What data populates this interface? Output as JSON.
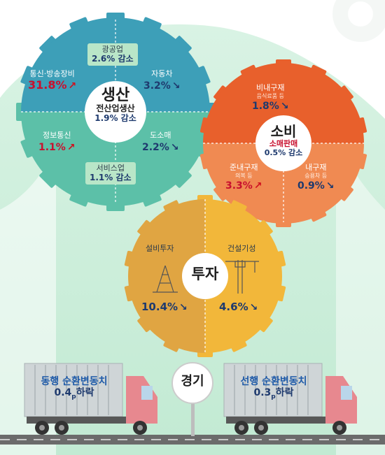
{
  "production": {
    "title": "생산",
    "subtitle": "전산업생산",
    "value": "1.9% 감소",
    "mining": {
      "label": "광공업",
      "value": "2.6% 감소"
    },
    "telecom_equipment": {
      "label": "통신·방송장비",
      "value": "31.8%",
      "direction": "up"
    },
    "automobile": {
      "label": "자동차",
      "value": "3.2%",
      "direction": "down"
    },
    "info_comm": {
      "label": "정보통신",
      "value": "1.1%",
      "direction": "up"
    },
    "wholesale_retail": {
      "label": "도소매",
      "value": "2.2%",
      "direction": "down"
    },
    "services": {
      "label": "서비스업",
      "value": "1.1% 감소"
    }
  },
  "consumption": {
    "title": "소비",
    "subtitle": "소매판매",
    "value": "0.5% 감소",
    "nondurables": {
      "label": "비내구재",
      "detail": "음식료품 등",
      "value": "1.8%",
      "direction": "down"
    },
    "semidurables": {
      "label": "준내구재",
      "detail": "의복 등",
      "value": "3.3%",
      "direction": "up"
    },
    "durables": {
      "label": "내구재",
      "detail": "승용차 등",
      "value": "0.9%",
      "direction": "down"
    }
  },
  "investment": {
    "title": "투자",
    "equipment": {
      "label": "설비투자",
      "value": "10.4%",
      "direction": "down"
    },
    "construction": {
      "label": "건설기성",
      "value": "4.6%",
      "direction": "down"
    }
  },
  "economy": {
    "label": "경기",
    "coincident": {
      "label": "동행 순환변동치",
      "value": "0.4",
      "unit": "p",
      "suffix": "하락"
    },
    "leading": {
      "label": "선행 순환변동치",
      "value": "0.3",
      "unit": "p",
      "suffix": "하락"
    }
  },
  "arrows": {
    "up": "↗",
    "down": "↘"
  },
  "colors": {
    "production_top": "#3d9fb8",
    "production_bottom": "#5cc0a8",
    "consumption_top": "#e8602c",
    "consumption_bottom": "#f08a52",
    "investment_left": "#e0a542",
    "investment_right": "#f2b73a",
    "background": "#cdeedd",
    "truck_cab": "#e7888f"
  }
}
